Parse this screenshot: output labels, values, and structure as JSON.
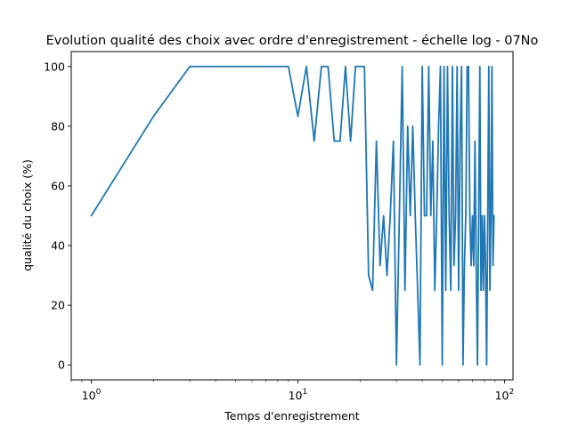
{
  "chart_data": {
    "type": "line",
    "title": "Evolution qualité des choix avec ordre d'enregistrement - échelle log - 07No",
    "xlabel": "Temps d'enregistrement",
    "ylabel": "qualité du choix (%)",
    "xscale": "log",
    "xlim": [
      0.8,
      110
    ],
    "ylim": [
      -5,
      105
    ],
    "grid": false,
    "legend": "none",
    "x_ticks": [
      {
        "value": 1,
        "base": "10",
        "exp": "0"
      },
      {
        "value": 10,
        "base": "10",
        "exp": "1"
      },
      {
        "value": 100,
        "base": "10",
        "exp": "2"
      }
    ],
    "y_ticks": [
      "0",
      "20",
      "40",
      "60",
      "80",
      "100"
    ],
    "line_color": "#1f77b4",
    "series": [
      {
        "x": [
          1,
          2,
          3,
          4,
          5,
          6,
          7,
          8,
          9,
          10,
          11,
          12,
          13,
          14,
          15,
          16,
          17,
          18,
          19,
          20,
          21,
          22,
          23,
          24,
          25,
          26,
          27,
          28,
          29,
          30,
          31,
          32,
          33,
          34,
          35,
          36,
          37,
          38,
          39,
          40,
          41,
          42,
          43,
          44,
          45,
          46,
          47,
          48,
          49,
          50,
          51,
          52,
          53,
          54,
          55,
          56,
          57,
          58,
          59,
          60,
          61,
          62,
          63,
          64,
          65,
          66,
          67,
          68,
          69,
          70,
          71,
          72,
          73,
          74,
          75,
          76,
          77,
          78,
          79,
          80,
          81,
          82,
          83,
          84,
          85,
          86,
          87,
          88,
          89
        ],
        "values": [
          50,
          83.3,
          100,
          100,
          100,
          100,
          100,
          100,
          100,
          83.3,
          100,
          75,
          100,
          100,
          75,
          75,
          100,
          75,
          100,
          100,
          100,
          30,
          25,
          75,
          33.3,
          50,
          30,
          50,
          75,
          0,
          50,
          100,
          25,
          80,
          50,
          80,
          50,
          25,
          0,
          100,
          50,
          50,
          100,
          50,
          75,
          25,
          50,
          80,
          100,
          0,
          100,
          25,
          100,
          50,
          25,
          100,
          33.3,
          50,
          100,
          25,
          75,
          100,
          0,
          33.3,
          50,
          100,
          100,
          50,
          33.3,
          50,
          33.3,
          75,
          33.3,
          0,
          50,
          100,
          25,
          50,
          25,
          50,
          33.3,
          0,
          50,
          100,
          25,
          50,
          100,
          33.3,
          50
        ]
      }
    ]
  }
}
